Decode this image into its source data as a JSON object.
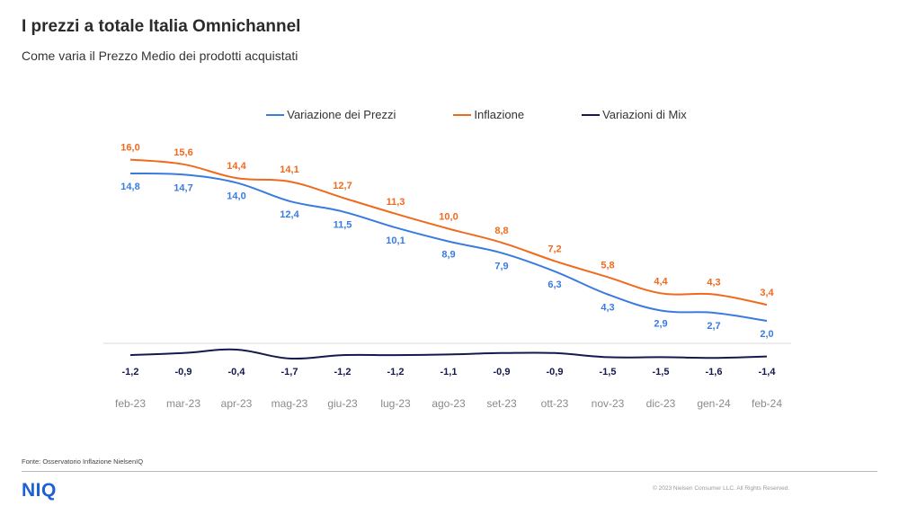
{
  "header": {
    "title": "I prezzi a totale Italia Omnichannel",
    "subtitle": "Come varia il Prezzo Medio dei prodotti acquistati"
  },
  "chart_data": {
    "type": "line",
    "title": "",
    "xlabel": "",
    "ylabel": "",
    "categories": [
      "feb-23",
      "mar-23",
      "apr-23",
      "mag-23",
      "giu-23",
      "lug-23",
      "ago-23",
      "set-23",
      "ott-23",
      "nov-23",
      "dic-23",
      "gen-24",
      "feb-24"
    ],
    "series": [
      {
        "name": "Variazione dei Prezzi",
        "color": "#3a7be0",
        "values": [
          14.8,
          14.7,
          14.0,
          12.4,
          11.5,
          10.1,
          8.9,
          7.9,
          6.3,
          4.3,
          2.9,
          2.7,
          2.0
        ],
        "labels": [
          "14,8",
          "14,7",
          "14,0",
          "12,4",
          "11,5",
          "10,1",
          "8,9",
          "7,9",
          "6,3",
          "4,3",
          "2,9",
          "2,7",
          "2,0"
        ]
      },
      {
        "name": "Inflazione",
        "color": "#f06a1e",
        "values": [
          16.0,
          15.6,
          14.4,
          14.1,
          12.7,
          11.3,
          10.0,
          8.8,
          7.2,
          5.8,
          4.4,
          4.3,
          3.4
        ],
        "labels": [
          "16,0",
          "15,6",
          "14,4",
          "14,1",
          "12,7",
          "11,3",
          "10,0",
          "8,8",
          "7,2",
          "5,8",
          "4,4",
          "4,3",
          "3,4"
        ]
      },
      {
        "name": "Variazioni di Mix",
        "color": "#141a4d",
        "values": [
          -1.2,
          -0.9,
          -0.4,
          -1.7,
          -1.2,
          -1.2,
          -1.1,
          -0.9,
          -0.9,
          -1.5,
          -1.5,
          -1.6,
          -1.4
        ],
        "labels": [
          "-1,2",
          "-0,9",
          "-0,4",
          "-1,7",
          "-1,2",
          "-1,2",
          "-1,1",
          "-0,9",
          "-0,9",
          "-1,5",
          "-1,5",
          "-1,6",
          "-1,4"
        ]
      }
    ],
    "legend_position": "top-center",
    "grid": false,
    "zero_line": true
  },
  "footer": {
    "source": "Fonte: Osservatorio Inflazione NielsenIQ",
    "logo": "NIQ",
    "copyright": "© 2023 Nielsen Consumer LLC. All Rights Reserved."
  }
}
